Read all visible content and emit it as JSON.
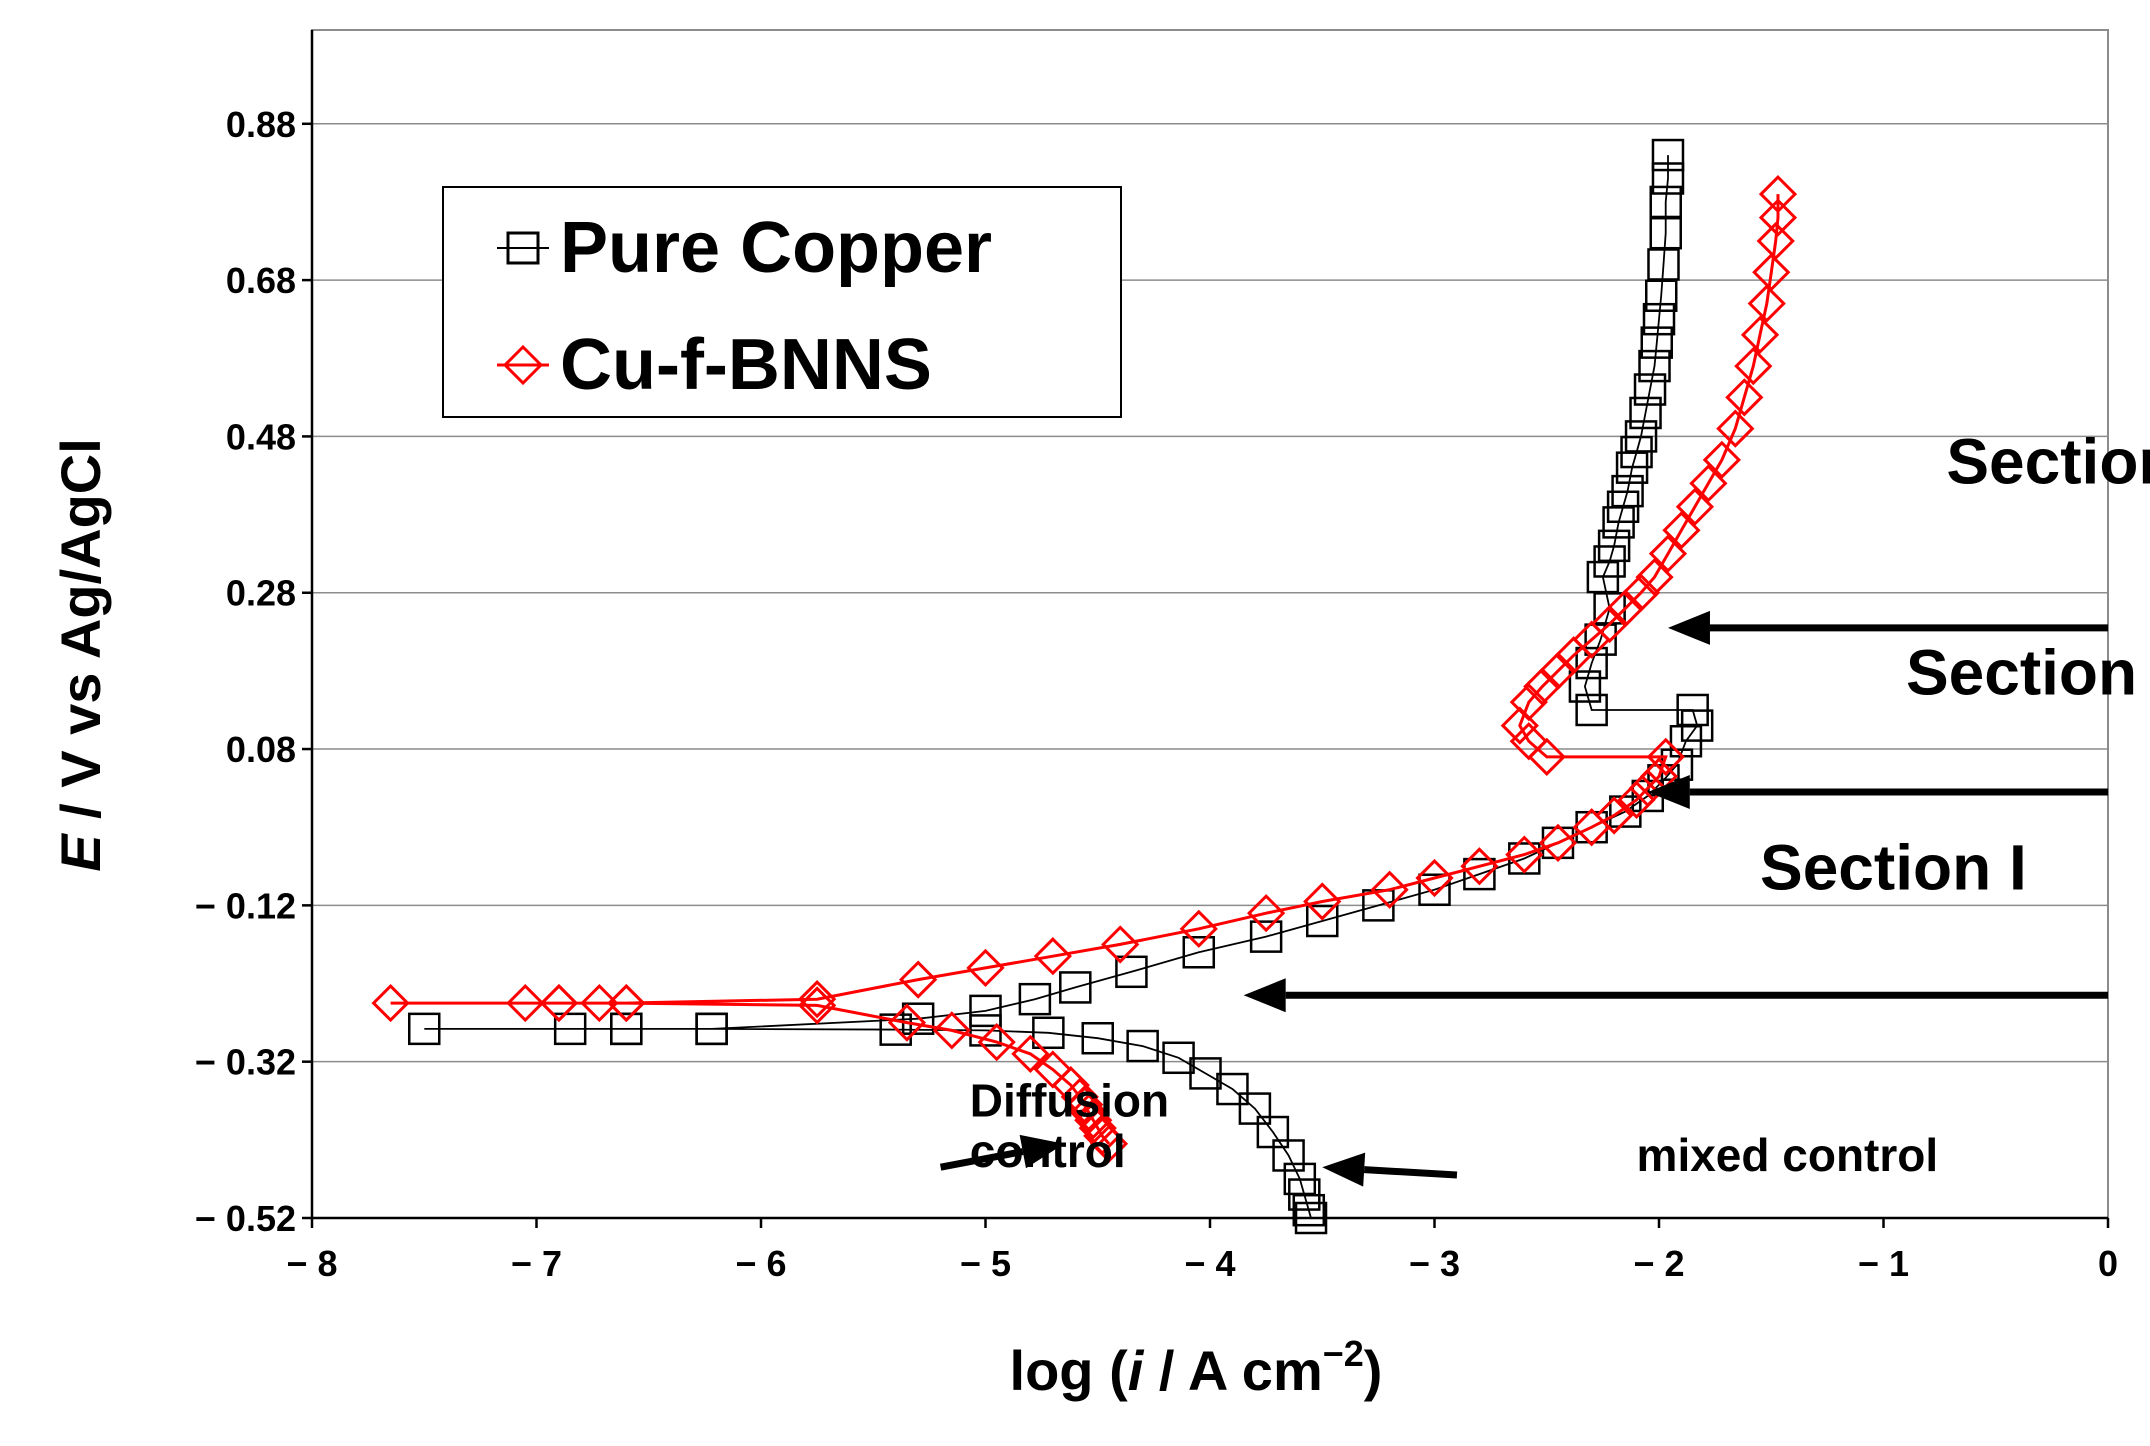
{
  "chart_data": {
    "type": "line",
    "title": "",
    "xlabel_prefix": "log (",
    "xlabel_italic": "i",
    "xlabel_rest": " / A cm",
    "xlabel_sup": "−2",
    "xlabel_close": ")",
    "ylabel_italic": "E",
    "ylabel_rest": " / V vs  Ag/AgCl",
    "xlim": [
      -8,
      0
    ],
    "ylim": [
      -0.52,
      1.0
    ],
    "xticks": [
      -8,
      -7,
      -6,
      -5,
      -4,
      -3,
      -2,
      -1,
      0
    ],
    "xtick_labels": [
      "− 8",
      "− 7",
      "− 6",
      "− 5",
      "− 4",
      "− 3",
      "− 2",
      "− 1",
      "0"
    ],
    "yticks": [
      -0.52,
      -0.32,
      -0.12,
      0.08,
      0.28,
      0.48,
      0.68,
      0.88
    ],
    "ytick_labels": [
      "− 0.52",
      "− 0.32",
      "− 0.12",
      "0.08",
      "0.28",
      "0.48",
      "0.68",
      "0.88"
    ],
    "grid": "horizontal",
    "legend": "top-left",
    "series": [
      {
        "name": "Pure Copper",
        "color": "#000000",
        "marker": "square",
        "x": [
          -3.55,
          -3.56,
          -3.58,
          -3.6,
          -3.65,
          -3.72,
          -3.8,
          -3.9,
          -4.02,
          -4.14,
          -4.3,
          -4.5,
          -4.72,
          -5.0,
          -5.4,
          -6.22,
          -6.6,
          -6.85,
          -7.5,
          -6.6,
          -6.22,
          -5.3,
          -5.0,
          -4.78,
          -4.6,
          -4.35,
          -4.05,
          -3.75,
          -3.5,
          -3.25,
          -3.0,
          -2.8,
          -2.6,
          -2.45,
          -2.3,
          -2.15,
          -2.05,
          -1.98,
          -1.92,
          -1.88,
          -1.83,
          -1.85,
          -2.3,
          -2.33,
          -2.3,
          -2.26,
          -2.22,
          -2.25,
          -2.22,
          -2.2,
          -2.18,
          -2.16,
          -2.14,
          -2.12,
          -2.1,
          -2.08,
          -2.06,
          -2.04,
          -2.02,
          -2.01,
          -2.0,
          -1.99,
          -1.98,
          -1.97,
          -1.97,
          -1.96,
          -1.96
        ],
        "y": [
          -0.52,
          -0.51,
          -0.49,
          -0.47,
          -0.44,
          -0.41,
          -0.38,
          -0.355,
          -0.335,
          -0.315,
          -0.3,
          -0.29,
          -0.283,
          -0.28,
          -0.279,
          -0.278,
          -0.278,
          -0.278,
          -0.278,
          -0.278,
          -0.278,
          -0.265,
          -0.255,
          -0.24,
          -0.225,
          -0.205,
          -0.18,
          -0.16,
          -0.14,
          -0.12,
          -0.1,
          -0.08,
          -0.06,
          -0.04,
          -0.02,
          -0.0,
          0.02,
          0.04,
          0.06,
          0.09,
          0.11,
          0.13,
          0.13,
          0.16,
          0.19,
          0.22,
          0.26,
          0.3,
          0.32,
          0.34,
          0.37,
          0.39,
          0.41,
          0.44,
          0.46,
          0.48,
          0.51,
          0.54,
          0.57,
          0.6,
          0.63,
          0.66,
          0.7,
          0.74,
          0.78,
          0.81,
          0.84
        ]
      },
      {
        "name": "Cu-f-BNNS",
        "color": "#ff0000",
        "marker": "diamond",
        "x": [
          -4.45,
          -4.48,
          -4.5,
          -4.52,
          -4.54,
          -4.56,
          -4.58,
          -4.62,
          -4.7,
          -4.8,
          -4.95,
          -5.15,
          -5.35,
          -5.75,
          -6.6,
          -6.72,
          -6.9,
          -7.05,
          -7.65,
          -6.9,
          -6.6,
          -5.75,
          -5.3,
          -5.0,
          -4.7,
          -4.4,
          -4.05,
          -3.75,
          -3.5,
          -3.2,
          -3.0,
          -2.8,
          -2.6,
          -2.45,
          -2.3,
          -2.2,
          -2.1,
          -2.05,
          -2.0,
          -1.97,
          -2.5,
          -2.58,
          -2.62,
          -2.58,
          -2.52,
          -2.45,
          -2.38,
          -2.3,
          -2.22,
          -2.15,
          -2.08,
          -2.02,
          -1.96,
          -1.9,
          -1.84,
          -1.78,
          -1.72,
          -1.66,
          -1.62,
          -1.58,
          -1.55,
          -1.52,
          -1.5,
          -1.48,
          -1.47,
          -1.47
        ],
        "y": [
          -0.425,
          -0.415,
          -0.405,
          -0.395,
          -0.385,
          -0.375,
          -0.365,
          -0.35,
          -0.33,
          -0.31,
          -0.295,
          -0.28,
          -0.27,
          -0.248,
          -0.245,
          -0.245,
          -0.245,
          -0.245,
          -0.245,
          -0.245,
          -0.245,
          -0.24,
          -0.215,
          -0.2,
          -0.185,
          -0.17,
          -0.15,
          -0.13,
          -0.115,
          -0.1,
          -0.085,
          -0.07,
          -0.055,
          -0.04,
          -0.02,
          -0.005,
          0.015,
          0.03,
          0.045,
          0.07,
          0.07,
          0.09,
          0.11,
          0.14,
          0.16,
          0.18,
          0.2,
          0.22,
          0.24,
          0.26,
          0.28,
          0.3,
          0.33,
          0.36,
          0.39,
          0.42,
          0.45,
          0.49,
          0.53,
          0.57,
          0.61,
          0.65,
          0.69,
          0.73,
          0.76,
          0.79
        ]
      }
    ],
    "annotations": [
      {
        "text": "Section III",
        "x": -0.72,
        "y": 0.42
      },
      {
        "text": "Section II",
        "x": -0.9,
        "y": 0.15
      },
      {
        "text": "Section I",
        "x": -1.55,
        "y": -0.1
      },
      {
        "text": "Diffusion",
        "x": -5.07,
        "y": -0.39
      },
      {
        "text": "control",
        "x": -5.07,
        "y": -0.455
      },
      {
        "text": "mixed control",
        "x": -2.1,
        "y": -0.46
      }
    ],
    "arrows": [
      {
        "from": [
          0,
          0.235
        ],
        "to": [
          -1.96,
          0.235
        ]
      },
      {
        "from": [
          0,
          0.025
        ],
        "to": [
          -2.05,
          0.025
        ]
      },
      {
        "from": [
          0,
          -0.235
        ],
        "to": [
          -3.85,
          -0.235
        ]
      },
      {
        "from": [
          -5.2,
          -0.455
        ],
        "to": [
          -4.65,
          -0.425
        ]
      },
      {
        "from": [
          -2.9,
          -0.465
        ],
        "to": [
          -3.5,
          -0.455
        ]
      }
    ]
  }
}
